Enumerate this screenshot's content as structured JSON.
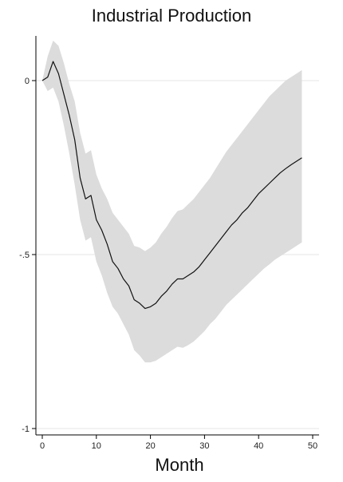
{
  "chart_data": {
    "type": "line",
    "title": "Industrial Production",
    "xlabel": "Month",
    "ylabel": "",
    "xlim": [
      0,
      50
    ],
    "ylim": [
      -1,
      0
    ],
    "xticks": [
      0,
      10,
      20,
      30,
      40,
      50
    ],
    "xtick_labels": [
      "0",
      "10",
      "20",
      "30",
      "40",
      "50"
    ],
    "yticks": [
      0,
      -0.5,
      -1
    ],
    "ytick_labels": [
      "0",
      "-.5",
      "-1"
    ],
    "grid": "horizontal",
    "legend": "none",
    "colors": {
      "line": "#111111",
      "band": "#dcdcdc",
      "grid": "#e6e6e6",
      "axis": "#000000"
    },
    "series": [
      {
        "x": [
          0,
          1,
          2,
          3,
          4,
          5,
          6,
          7,
          8,
          9,
          10,
          11,
          12,
          13,
          14,
          15,
          16,
          17,
          18,
          19,
          20,
          21,
          22,
          23,
          24,
          25,
          26,
          27,
          28,
          29,
          30,
          31,
          32,
          33,
          34,
          35,
          36,
          37,
          38,
          39,
          40,
          41,
          42,
          43,
          44,
          45,
          46,
          47,
          48
        ],
        "y": [
          0,
          0.01,
          0.055,
          0.02,
          -0.04,
          -0.1,
          -0.17,
          -0.28,
          -0.34,
          -0.33,
          -0.4,
          -0.43,
          -0.47,
          -0.52,
          -0.54,
          -0.57,
          -0.59,
          -0.63,
          -0.64,
          -0.655,
          -0.65,
          -0.64,
          -0.62,
          -0.605,
          -0.585,
          -0.57,
          -0.57,
          -0.56,
          -0.55,
          -0.535,
          -0.515,
          -0.495,
          -0.475,
          -0.455,
          -0.435,
          -0.415,
          -0.4,
          -0.38,
          -0.365,
          -0.345,
          -0.325,
          -0.31,
          -0.295,
          -0.28,
          -0.265,
          -0.253,
          -0.242,
          -0.232,
          -0.222
        ],
        "lower": [
          0,
          -0.03,
          -0.02,
          -0.06,
          -0.13,
          -0.21,
          -0.3,
          -0.4,
          -0.46,
          -0.45,
          -0.52,
          -0.56,
          -0.61,
          -0.65,
          -0.67,
          -0.7,
          -0.73,
          -0.775,
          -0.79,
          -0.81,
          -0.81,
          -0.805,
          -0.795,
          -0.785,
          -0.775,
          -0.765,
          -0.768,
          -0.76,
          -0.75,
          -0.735,
          -0.72,
          -0.7,
          -0.685,
          -0.665,
          -0.645,
          -0.63,
          -0.615,
          -0.6,
          -0.585,
          -0.57,
          -0.555,
          -0.54,
          -0.528,
          -0.515,
          -0.505,
          -0.495,
          -0.485,
          -0.475,
          -0.465
        ],
        "upper": [
          0,
          0.07,
          0.115,
          0.1,
          0.05,
          -0.01,
          -0.06,
          -0.15,
          -0.21,
          -0.2,
          -0.27,
          -0.31,
          -0.34,
          -0.38,
          -0.4,
          -0.42,
          -0.44,
          -0.475,
          -0.48,
          -0.49,
          -0.48,
          -0.465,
          -0.44,
          -0.42,
          -0.395,
          -0.375,
          -0.37,
          -0.355,
          -0.34,
          -0.32,
          -0.3,
          -0.28,
          -0.255,
          -0.23,
          -0.205,
          -0.185,
          -0.165,
          -0.145,
          -0.125,
          -0.105,
          -0.085,
          -0.065,
          -0.045,
          -0.03,
          -0.015,
          0,
          0.01,
          0.02,
          0.03
        ]
      }
    ]
  }
}
